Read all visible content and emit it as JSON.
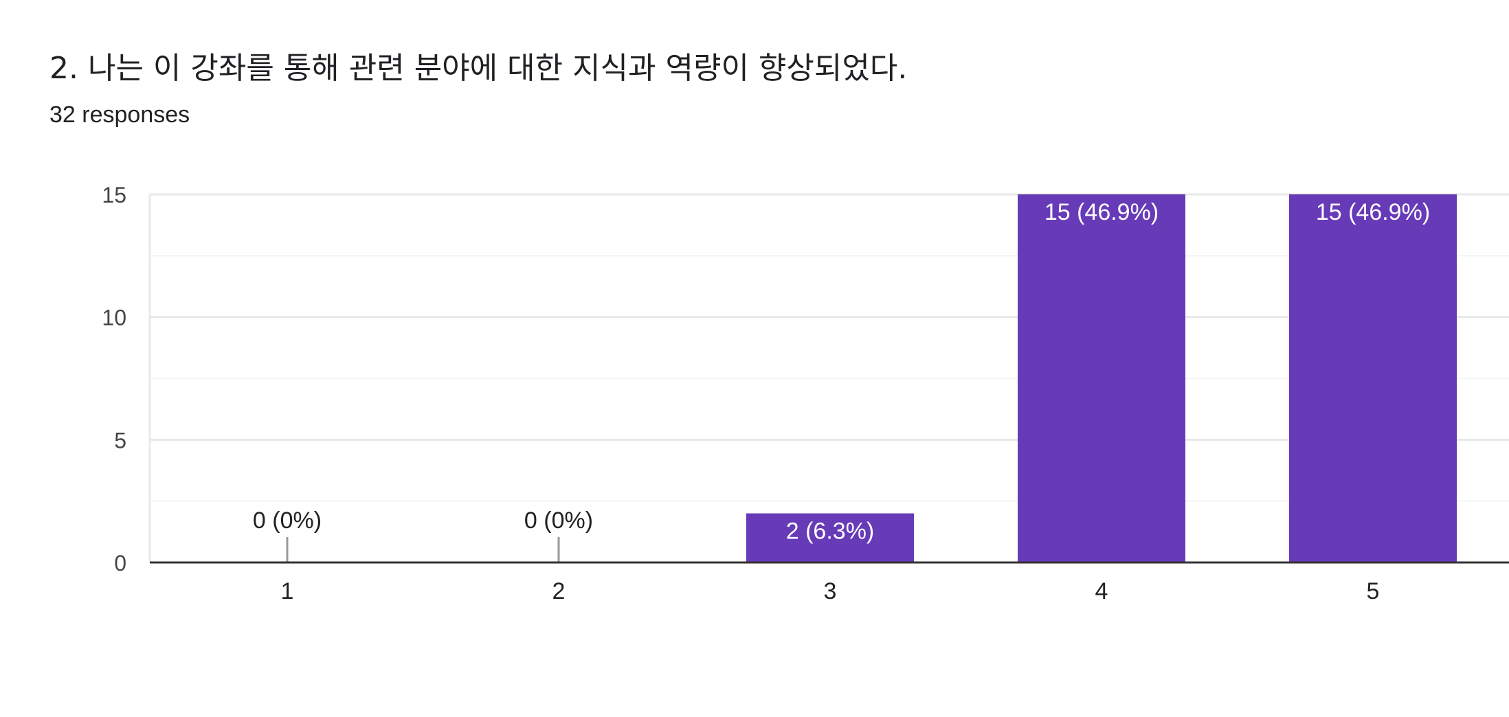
{
  "question": {
    "title": "2. 나는 이 강좌를 통해 관련 분야에 대한 지식과 역량이 향상되었다.",
    "responses": "32 responses"
  },
  "colors": {
    "bar": "#673ab7",
    "grid_major": "#e8e8e8",
    "grid_minor": "#f3f3f3",
    "axis": "#333333",
    "label_inside": "#ffffff",
    "label_outside": "#202124",
    "tick_text": "#444444"
  },
  "chart_data": {
    "type": "bar",
    "categories": [
      "1",
      "2",
      "3",
      "4",
      "5"
    ],
    "values": [
      0,
      0,
      2,
      15,
      15
    ],
    "data_labels": [
      "0 (0%)",
      "0 (0%)",
      "2 (6.3%)",
      "15 (46.9%)",
      "15 (46.9%)"
    ],
    "yticks": [
      "0",
      "5",
      "10",
      "15"
    ],
    "ylim": [
      0,
      15
    ],
    "grid": true
  }
}
